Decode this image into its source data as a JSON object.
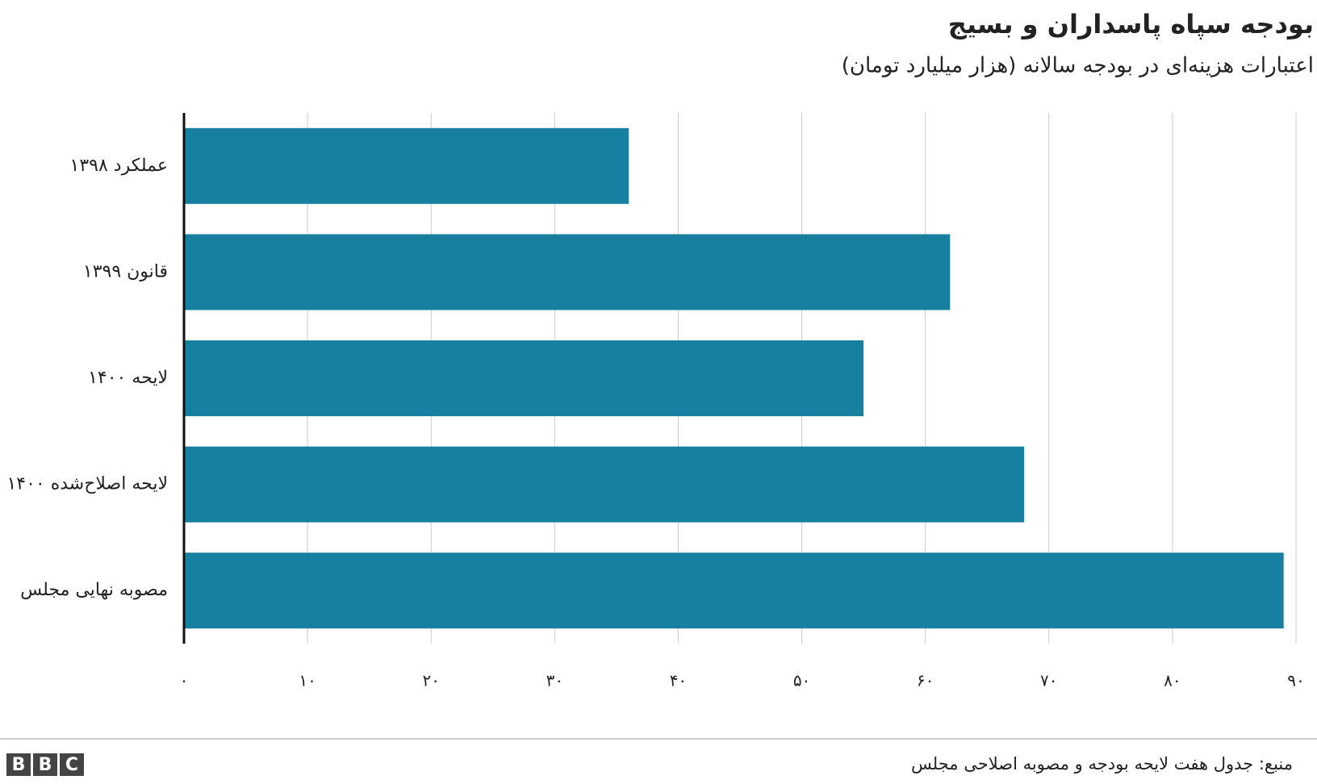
{
  "chart_data": {
    "type": "bar",
    "orientation": "horizontal",
    "title": "بودجه سپاه پاسداران و بسیج",
    "subtitle": "اعتبارات هزینه‌ای در بودجه سالانه (هزار میلیارد تومان)",
    "categories": [
      "عملکرد ۱۳۹۸",
      "قانون ۱۳۹۹",
      "لایحه ۱۴۰۰",
      "لایحه اصلاح‌شده ۱۴۰۰",
      "مصوبه نهایی مجلس"
    ],
    "values": [
      36,
      62,
      55,
      68,
      89
    ],
    "color": "#1780a1",
    "xlim": [
      0,
      90
    ],
    "xticks": [
      {
        "value": 0,
        "label": "۰"
      },
      {
        "value": 10,
        "label": "۱۰"
      },
      {
        "value": 20,
        "label": "۲۰"
      },
      {
        "value": 30,
        "label": "۳۰"
      },
      {
        "value": 40,
        "label": "۴۰"
      },
      {
        "value": 50,
        "label": "۵۰"
      },
      {
        "value": 60,
        "label": "۶۰"
      },
      {
        "value": 70,
        "label": "۷۰"
      },
      {
        "value": 80,
        "label": "۸۰"
      },
      {
        "value": 90,
        "label": "۹۰"
      }
    ],
    "grid": true,
    "source": "منبع: جدول هفت لایحه بودجه و مصوبه اصلاحی مجلس",
    "logo": [
      "B",
      "B",
      "C"
    ]
  }
}
